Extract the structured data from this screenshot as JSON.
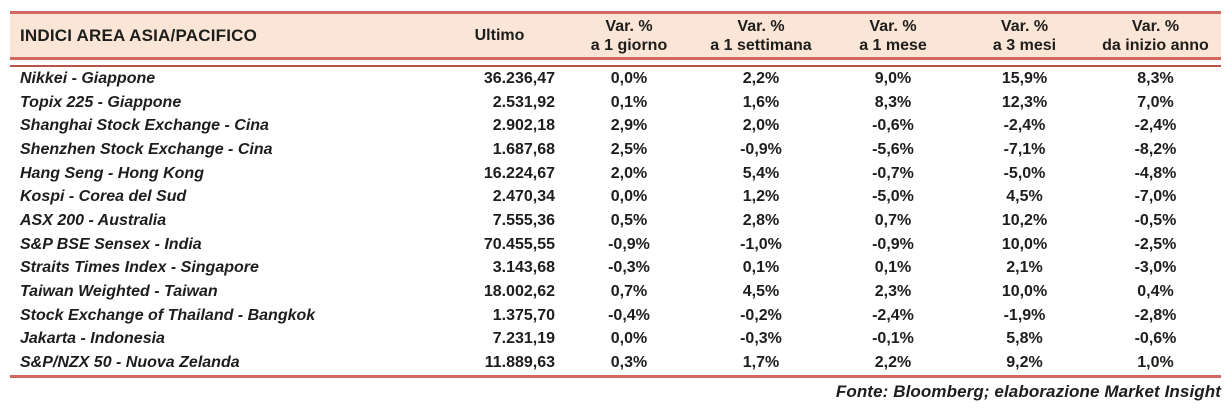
{
  "table": {
    "title": "INDICI AREA ASIA/PACIFICO",
    "ultimo_header": "Ultimo",
    "var_headers": [
      {
        "line1": "Var. %",
        "line2": "a 1 giorno"
      },
      {
        "line1": "Var. %",
        "line2": "a 1 settimana"
      },
      {
        "line1": "Var. %",
        "line2": "a 1 mese"
      },
      {
        "line1": "Var. %",
        "line2": "a 3 mesi"
      },
      {
        "line1": "Var. %",
        "line2": "da inizio anno"
      }
    ],
    "rows": [
      {
        "name": "Nikkei - Giappone",
        "ultimo": "36.236,47",
        "d1": "0,0%",
        "w1": "2,2%",
        "m1": "9,0%",
        "m3": "15,9%",
        "ytd": "8,3%"
      },
      {
        "name": "Topix 225 - Giappone",
        "ultimo": "2.531,92",
        "d1": "0,1%",
        "w1": "1,6%",
        "m1": "8,3%",
        "m3": "12,3%",
        "ytd": "7,0%"
      },
      {
        "name": "Shanghai Stock Exchange - Cina",
        "ultimo": "2.902,18",
        "d1": "2,9%",
        "w1": "2,0%",
        "m1": "-0,6%",
        "m3": "-2,4%",
        "ytd": "-2,4%"
      },
      {
        "name": "Shenzhen Stock Exchange - Cina",
        "ultimo": "1.687,68",
        "d1": "2,5%",
        "w1": "-0,9%",
        "m1": "-5,6%",
        "m3": "-7,1%",
        "ytd": "-8,2%"
      },
      {
        "name": "Hang Seng - Hong Kong",
        "ultimo": "16.224,67",
        "d1": "2,0%",
        "w1": "5,4%",
        "m1": "-0,7%",
        "m3": "-5,0%",
        "ytd": "-4,8%"
      },
      {
        "name": "Kospi - Corea del Sud",
        "ultimo": "2.470,34",
        "d1": "0,0%",
        "w1": "1,2%",
        "m1": "-5,0%",
        "m3": "4,5%",
        "ytd": "-7,0%"
      },
      {
        "name": "ASX 200 - Australia",
        "ultimo": "7.555,36",
        "d1": "0,5%",
        "w1": "2,8%",
        "m1": "0,7%",
        "m3": "10,2%",
        "ytd": "-0,5%"
      },
      {
        "name": "S&P BSE Sensex - India",
        "ultimo": "70.455,55",
        "d1": "-0,9%",
        "w1": "-1,0%",
        "m1": "-0,9%",
        "m3": "10,0%",
        "ytd": "-2,5%"
      },
      {
        "name": "Straits Times Index - Singapore",
        "ultimo": "3.143,68",
        "d1": "-0,3%",
        "w1": "0,1%",
        "m1": "0,1%",
        "m3": "2,1%",
        "ytd": "-3,0%"
      },
      {
        "name": "Taiwan Weighted - Taiwan",
        "ultimo": "18.002,62",
        "d1": "0,7%",
        "w1": "4,5%",
        "m1": "2,3%",
        "m3": "10,0%",
        "ytd": "0,4%"
      },
      {
        "name": "Stock Exchange of Thailand - Bangkok",
        "ultimo": "1.375,70",
        "d1": "-0,4%",
        "w1": "-0,2%",
        "m1": "-2,4%",
        "m3": "-1,9%",
        "ytd": "-2,8%"
      },
      {
        "name": "Jakarta - Indonesia",
        "ultimo": "7.231,19",
        "d1": "0,0%",
        "w1": "-0,3%",
        "m1": "-0,1%",
        "m3": "5,8%",
        "ytd": "-0,6%"
      },
      {
        "name": "S&P/NZX 50 - Nuova Zelanda",
        "ultimo": "11.889,63",
        "d1": "0,3%",
        "w1": "1,7%",
        "m1": "2,2%",
        "m3": "9,2%",
        "ytd": "1,0%"
      }
    ]
  },
  "footer": {
    "source": "Fonte: Bloomberg; elaborazione Market Insight"
  },
  "colors": {
    "header_bg": "#fbe5d6",
    "thick_border": "#d2685f",
    "thin_rule": "#b9544c",
    "text": "#1d1d1b"
  }
}
